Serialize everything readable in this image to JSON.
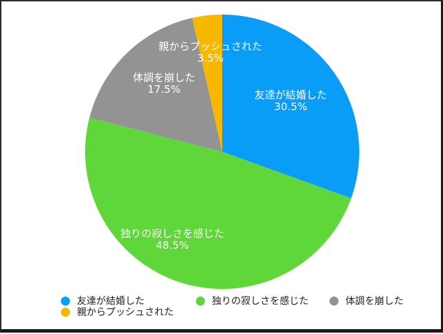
{
  "chart_data": {
    "type": "pie",
    "title": "",
    "categories": [
      "友達が結婚した",
      "独りの寂しさを感じた",
      "体調を崩した",
      "親からプッシュされた"
    ],
    "values": [
      30.5,
      48.5,
      17.5,
      3.5
    ],
    "unit": "%",
    "colors": [
      "#0A9DF7",
      "#5FD63A",
      "#939393",
      "#F9B800"
    ],
    "start_angle_deg": 0,
    "direction": "clockwise",
    "labels": [
      "友達が結婚した",
      "独りの寂しさを感じた",
      "体調を崩した",
      "親からプッシュされた"
    ],
    "value_labels": [
      "30.5%",
      "48.5%",
      "17.5%",
      "3.5%"
    ],
    "legend_position": "bottom"
  },
  "legend": {
    "items": [
      {
        "label": "友達が結婚した",
        "color": "#0A9DF7"
      },
      {
        "label": "独りの寂しさを感じた",
        "color": "#5FD63A"
      },
      {
        "label": "体調を崩した",
        "color": "#939393"
      },
      {
        "label": "親からプッシュされた",
        "color": "#F9B800"
      }
    ]
  }
}
